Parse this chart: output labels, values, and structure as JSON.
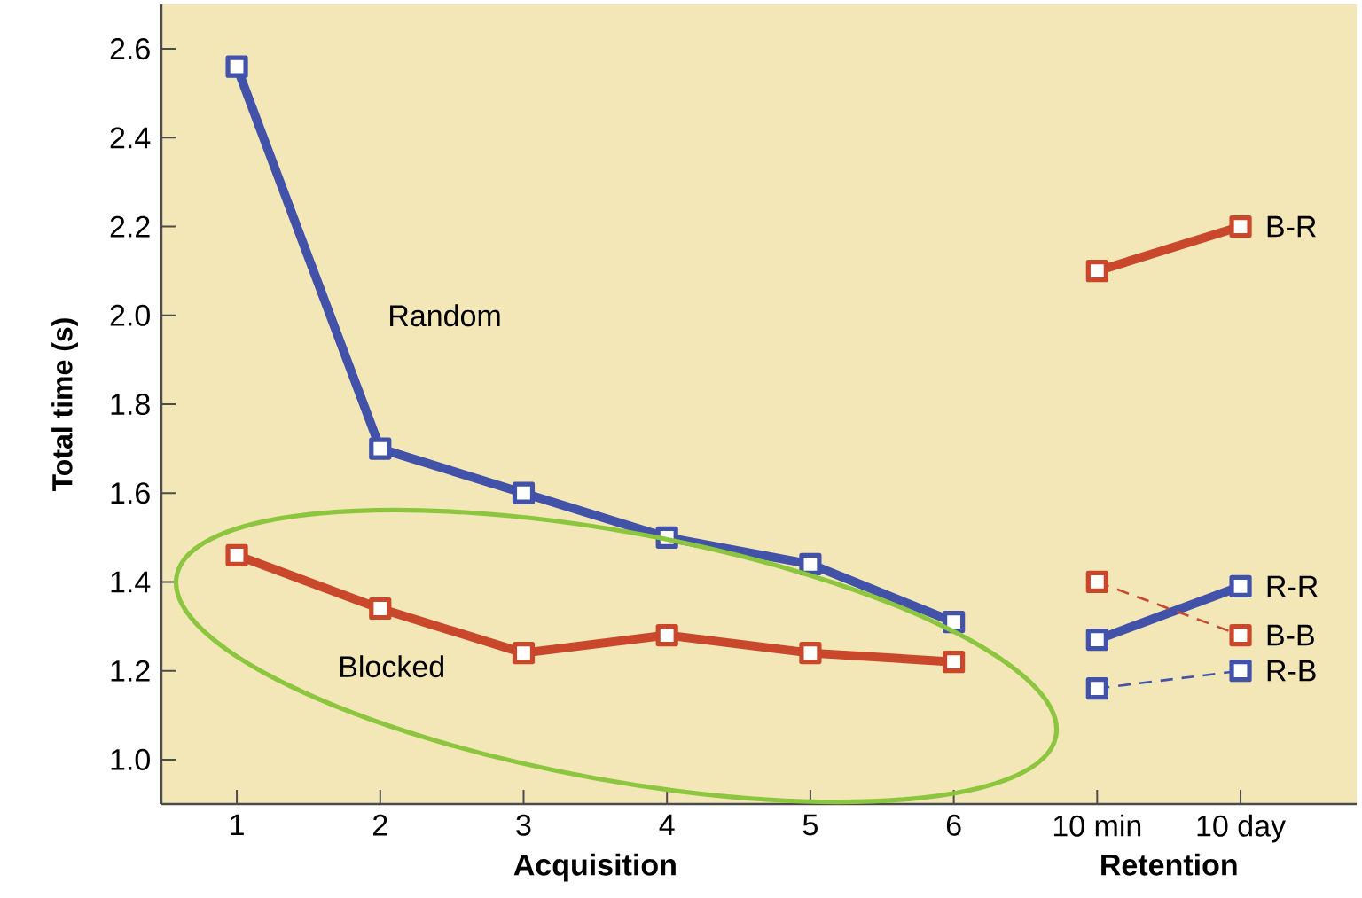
{
  "chart_data": {
    "type": "line",
    "categories": [
      "1",
      "2",
      "3",
      "4",
      "5",
      "6",
      "10 min",
      "10 day"
    ],
    "xlabel": "Acquisition",
    "ylabel": "Total time (s)",
    "annotations": [
      "Retention"
    ],
    "ylim": [
      0.9,
      2.7
    ],
    "yticks": [
      {
        "value": 1.0,
        "label": "1.0"
      },
      {
        "value": 1.2,
        "label": "1.2"
      },
      {
        "value": 1.4,
        "label": "1.4"
      },
      {
        "value": 1.6,
        "label": "1.6"
      },
      {
        "value": 1.8,
        "label": "1.8"
      },
      {
        "value": 2.0,
        "label": "2.0"
      },
      {
        "value": 2.2,
        "label": "2.2"
      },
      {
        "value": 2.4,
        "label": "2.4"
      },
      {
        "value": 2.6,
        "label": "2.6"
      }
    ],
    "marker": "square",
    "line_style": "solid",
    "series": [
      {
        "name": "Random",
        "color": "#4152a8",
        "values": [
          2.56,
          1.7,
          1.6,
          1.5,
          1.44,
          1.31,
          null,
          null
        ]
      },
      {
        "name": "Blocked",
        "color": "#c9472b",
        "values": [
          1.46,
          1.34,
          1.24,
          1.28,
          1.24,
          1.22,
          null,
          null
        ]
      },
      {
        "name": "B-R",
        "color": "#c9472b",
        "values": [
          null,
          null,
          null,
          null,
          null,
          null,
          2.1,
          2.2
        ]
      },
      {
        "name": "R-R",
        "color": "#4152a8",
        "values": [
          null,
          null,
          null,
          null,
          null,
          null,
          1.27,
          1.39
        ]
      },
      {
        "name": "B-B",
        "color": "#c9472b",
        "line_style": "dashed",
        "values": [
          null,
          null,
          null,
          null,
          null,
          null,
          1.4,
          1.28
        ]
      },
      {
        "name": "R-B",
        "color": "#4152a8",
        "line_style": "dashed",
        "values": [
          null,
          null,
          null,
          null,
          null,
          null,
          1.16,
          1.2
        ]
      }
    ]
  }
}
